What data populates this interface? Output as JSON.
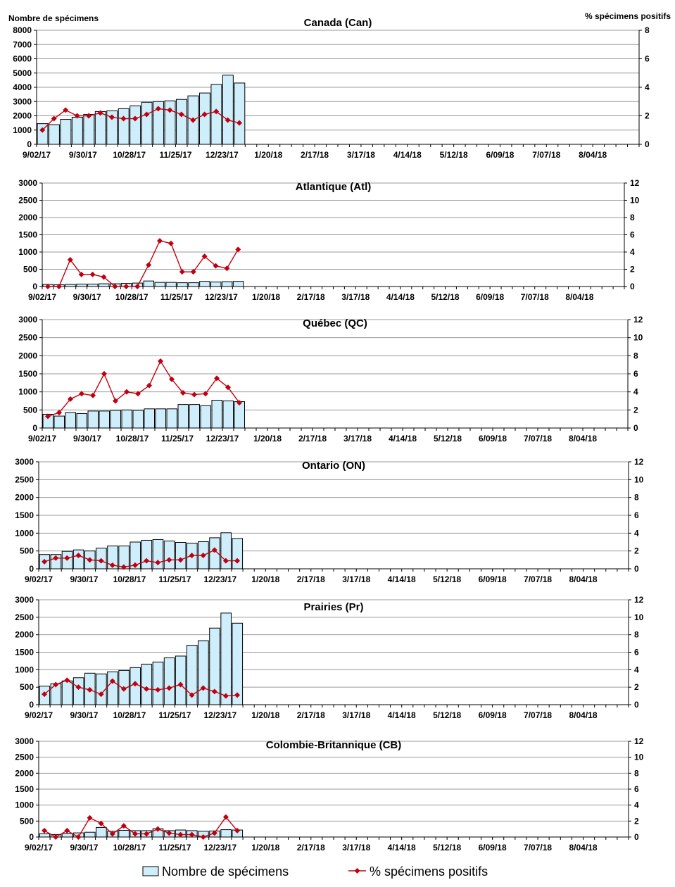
{
  "left_axis_label": "Nombre de spécimens",
  "right_axis_label": "% spécimens positifs",
  "legend": {
    "bar_label": "Nombre de spécimens",
    "line_label": "% spécimens positifs"
  },
  "colors": {
    "bar_fill": "#cfeefc",
    "bar_stroke": "#000000",
    "line": "#c0000f",
    "grid": "#9a9a9a"
  },
  "chart_data": [
    {
      "type": "bar",
      "title": "Canada (Can)",
      "categories": [
        "9/02/17",
        "9/09/17",
        "9/16/17",
        "9/23/17",
        "9/30/17",
        "10/07/17",
        "10/14/17",
        "10/21/17",
        "10/28/17",
        "11/04/17",
        "11/11/17",
        "11/18/17",
        "11/25/17",
        "12/02/17",
        "12/09/17",
        "12/16/17",
        "12/23/17",
        "12/30/17"
      ],
      "x_tick_labels": [
        "9/02/17",
        "9/30/17",
        "10/28/17",
        "11/25/17",
        "12/23/17",
        "1/20/18",
        "2/17/18",
        "3/17/18",
        "4/14/18",
        "5/12/18",
        "6/09/18",
        "7/07/18",
        "8/04/18"
      ],
      "total_weeks": 52,
      "ylim": [
        0,
        8000
      ],
      "y_ticks": [
        0,
        1000,
        2000,
        3000,
        4000,
        5000,
        6000,
        7000,
        8000
      ],
      "y2lim": [
        0,
        8
      ],
      "y2_ticks": [
        0,
        2,
        4,
        6,
        8
      ],
      "series": [
        {
          "name": "Nombre de spécimens",
          "type": "bar",
          "values": [
            1450,
            1380,
            1750,
            1900,
            2100,
            2300,
            2350,
            2500,
            2700,
            2950,
            3000,
            3050,
            3150,
            3400,
            3600,
            4200,
            4850,
            4300
          ]
        },
        {
          "name": "% spécimens positifs",
          "type": "line",
          "axis": "right",
          "values": [
            1.0,
            1.8,
            2.4,
            2.0,
            2.0,
            2.2,
            1.9,
            1.8,
            1.8,
            2.1,
            2.5,
            2.4,
            2.1,
            1.7,
            2.1,
            2.3,
            1.7,
            1.5
          ]
        }
      ]
    },
    {
      "type": "bar",
      "title": "Atlantique (Atl)",
      "categories": [
        "9/02/17",
        "9/09/17",
        "9/16/17",
        "9/23/17",
        "9/30/17",
        "10/07/17",
        "10/14/17",
        "10/21/17",
        "10/28/17",
        "11/04/17",
        "11/11/17",
        "11/18/17",
        "11/25/17",
        "12/02/17",
        "12/09/17",
        "12/16/17",
        "12/23/17",
        "12/30/17"
      ],
      "x_tick_labels": [
        "9/02/17",
        "9/30/17",
        "10/28/17",
        "11/25/17",
        "12/23/17",
        "1/20/18",
        "2/17/18",
        "3/17/18",
        "4/14/18",
        "5/12/18",
        "6/09/18",
        "7/07/18",
        "8/04/18"
      ],
      "total_weeks": 52,
      "ylim": [
        0,
        3000
      ],
      "y_ticks": [
        0,
        500,
        1000,
        1500,
        2000,
        2500,
        3000
      ],
      "y2lim": [
        0,
        12
      ],
      "y2_ticks": [
        0,
        2,
        4,
        6,
        8,
        10,
        12
      ],
      "series": [
        {
          "name": "Nombre de spécimens",
          "type": "bar",
          "values": [
            60,
            50,
            60,
            70,
            70,
            80,
            80,
            90,
            100,
            160,
            120,
            120,
            110,
            110,
            150,
            130,
            140,
            150
          ]
        },
        {
          "name": "% spécimens positifs",
          "type": "line",
          "axis": "right",
          "values": [
            0,
            0,
            3.1,
            1.4,
            1.4,
            1.1,
            0,
            0,
            0,
            2.5,
            5.3,
            5.0,
            1.7,
            1.7,
            3.5,
            2.4,
            2.1,
            4.3
          ]
        }
      ]
    },
    {
      "type": "bar",
      "title": "Québec (QC)",
      "categories": [
        "9/02/17",
        "9/09/17",
        "9/16/17",
        "9/23/17",
        "9/30/17",
        "10/07/17",
        "10/14/17",
        "10/21/17",
        "10/28/17",
        "11/04/17",
        "11/11/17",
        "11/18/17",
        "11/25/17",
        "12/02/17",
        "12/09/17",
        "12/16/17",
        "12/23/17",
        "12/30/17"
      ],
      "x_tick_labels": [
        "9/02/17",
        "9/30/17",
        "10/28/17",
        "11/25/17",
        "12/23/17",
        "1/20/18",
        "2/17/18",
        "3/17/18",
        "4/14/18",
        "5/12/18",
        "6/09/18",
        "7/07/18",
        "8/04/18"
      ],
      "total_weeks": 52,
      "ylim": [
        0,
        3000
      ],
      "y_ticks": [
        0,
        500,
        1000,
        1500,
        2000,
        2500,
        3000
      ],
      "y2lim": [
        0,
        12
      ],
      "y2_ticks": [
        0,
        2,
        4,
        6,
        8,
        10,
        12
      ],
      "series": [
        {
          "name": "Nombre de spécimens",
          "type": "bar",
          "values": [
            380,
            330,
            430,
            400,
            470,
            470,
            490,
            500,
            490,
            530,
            530,
            530,
            650,
            650,
            620,
            770,
            750,
            730
          ]
        },
        {
          "name": "% spécimens positifs",
          "type": "line",
          "axis": "right",
          "values": [
            1.3,
            1.7,
            3.2,
            3.8,
            3.6,
            6.0,
            3.0,
            4.0,
            3.8,
            4.7,
            7.4,
            5.4,
            3.9,
            3.7,
            3.8,
            5.5,
            4.5,
            2.8
          ]
        }
      ]
    },
    {
      "type": "bar",
      "title": "Ontario (ON)",
      "categories": [
        "9/02/17",
        "9/09/17",
        "9/16/17",
        "9/23/17",
        "9/30/17",
        "10/07/17",
        "10/14/17",
        "10/21/17",
        "10/28/17",
        "11/04/17",
        "11/11/17",
        "11/18/17",
        "11/25/17",
        "12/02/17",
        "12/09/17",
        "12/16/17",
        "12/23/17",
        "12/30/17"
      ],
      "x_tick_labels": [
        "9/02/17",
        "9/30/17",
        "10/28/17",
        "11/25/17",
        "12/23/17",
        "1/20/18",
        "2/17/18",
        "3/17/18",
        "4/14/18",
        "5/12/18",
        "6/09/18",
        "7/07/18",
        "8/04/18"
      ],
      "total_weeks": 52,
      "ylim": [
        0,
        3000
      ],
      "y_ticks": [
        0,
        500,
        1000,
        1500,
        2000,
        2500,
        3000
      ],
      "y2lim": [
        0,
        12
      ],
      "y2_ticks": [
        0,
        2,
        4,
        6,
        8,
        10,
        12
      ],
      "series": [
        {
          "name": "Nombre de spécimens",
          "type": "bar",
          "values": [
            400,
            400,
            490,
            530,
            500,
            580,
            640,
            640,
            750,
            800,
            820,
            780,
            740,
            720,
            760,
            870,
            1010,
            850
          ]
        },
        {
          "name": "% spécimens positifs",
          "type": "line",
          "axis": "right",
          "values": [
            0.8,
            1.2,
            1.2,
            1.5,
            1.0,
            0.9,
            0.4,
            0.2,
            0.4,
            0.9,
            0.7,
            1.0,
            1.0,
            1.5,
            1.5,
            2.1,
            0.9,
            0.9
          ]
        }
      ]
    },
    {
      "type": "bar",
      "title": "Prairies (Pr)",
      "categories": [
        "9/02/17",
        "9/09/17",
        "9/16/17",
        "9/23/17",
        "9/30/17",
        "10/07/17",
        "10/14/17",
        "10/21/17",
        "10/28/17",
        "11/04/17",
        "11/11/17",
        "11/18/17",
        "11/25/17",
        "12/02/17",
        "12/09/17",
        "12/16/17",
        "12/23/17",
        "12/30/17"
      ],
      "x_tick_labels": [
        "9/02/17",
        "9/30/17",
        "10/28/17",
        "11/25/17",
        "12/23/17",
        "1/20/18",
        "2/17/18",
        "3/17/18",
        "4/14/18",
        "5/12/18",
        "6/09/18",
        "7/07/18",
        "8/04/18"
      ],
      "total_weeks": 52,
      "ylim": [
        0,
        3000
      ],
      "y_ticks": [
        0,
        500,
        1000,
        1500,
        2000,
        2500,
        3000
      ],
      "y2lim": [
        0,
        12
      ],
      "y2_ticks": [
        0,
        2,
        4,
        6,
        8,
        10,
        12
      ],
      "series": [
        {
          "name": "Nombre de spécimens",
          "type": "bar",
          "values": [
            530,
            600,
            680,
            770,
            900,
            880,
            940,
            980,
            1060,
            1160,
            1220,
            1340,
            1390,
            1700,
            1830,
            2190,
            2620,
            2330
          ]
        },
        {
          "name": "% spécimens positifs",
          "type": "line",
          "axis": "right",
          "values": [
            1.2,
            2.3,
            2.8,
            2.0,
            1.7,
            1.2,
            2.7,
            1.8,
            2.4,
            1.8,
            1.7,
            1.9,
            2.3,
            1.1,
            1.9,
            1.5,
            1.0,
            1.1
          ]
        }
      ]
    },
    {
      "type": "bar",
      "title": "Colombie-Britannique (CB)",
      "categories": [
        "9/02/17",
        "9/09/17",
        "9/16/17",
        "9/23/17",
        "9/30/17",
        "10/07/17",
        "10/14/17",
        "10/21/17",
        "10/28/17",
        "11/04/17",
        "11/11/17",
        "11/18/17",
        "11/25/17",
        "12/02/17",
        "12/09/17",
        "12/16/17",
        "12/23/17",
        "12/30/17"
      ],
      "x_tick_labels": [
        "9/02/17",
        "9/30/17",
        "10/28/17",
        "11/25/17",
        "12/23/17",
        "1/20/18",
        "2/17/18",
        "3/17/18",
        "4/14/18",
        "5/12/18",
        "6/09/18",
        "7/07/18",
        "8/04/18"
      ],
      "total_weeks": 52,
      "ylim": [
        0,
        3000
      ],
      "y_ticks": [
        0,
        500,
        1000,
        1500,
        2000,
        2500,
        3000
      ],
      "y2lim": [
        0,
        12
      ],
      "y2_ticks": [
        0,
        2,
        4,
        6,
        8,
        10,
        12
      ],
      "series": [
        {
          "name": "Nombre de spécimens",
          "type": "bar",
          "values": [
            100,
            80,
            110,
            130,
            150,
            300,
            180,
            210,
            200,
            200,
            260,
            200,
            220,
            200,
            180,
            190,
            230,
            220
          ]
        },
        {
          "name": "% spécimens positifs",
          "type": "line",
          "axis": "right",
          "values": [
            0.8,
            0,
            0.8,
            0,
            2.4,
            1.7,
            0.4,
            1.4,
            0.4,
            0.4,
            1.0,
            0.5,
            0.3,
            0.3,
            0,
            0.5,
            2.5,
            0.8
          ]
        }
      ]
    }
  ]
}
